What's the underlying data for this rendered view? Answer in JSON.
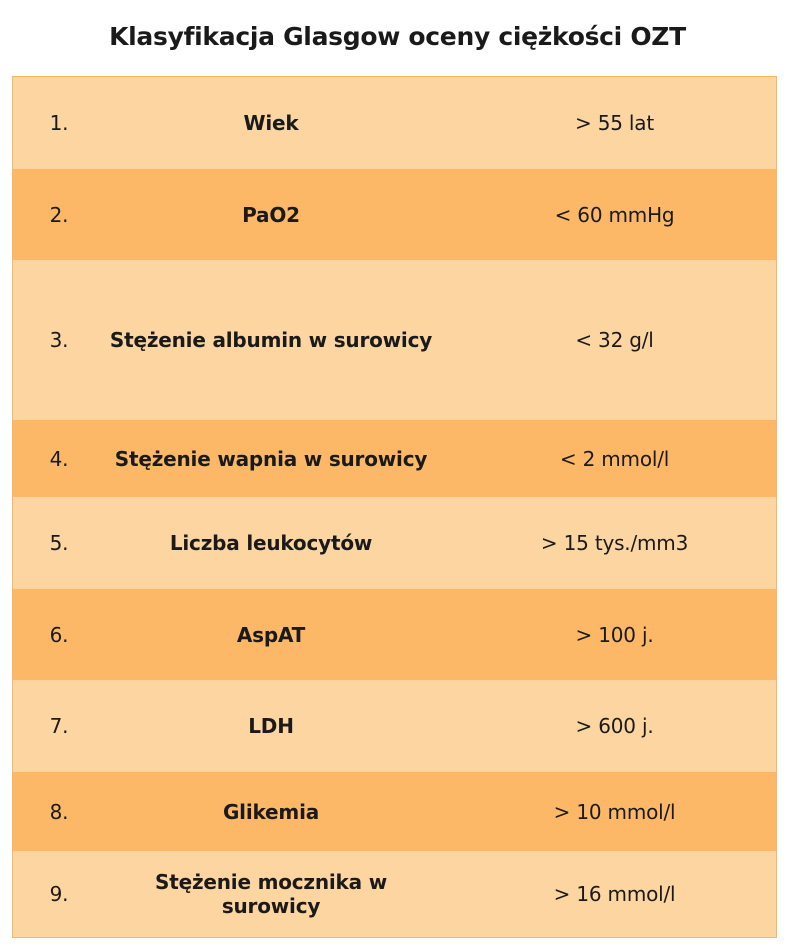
{
  "title": "Klasyfikacja Glasgow oceny ciężkości OZT",
  "colors": {
    "row_light": "#fdd5a1",
    "row_dark": "#fdb867",
    "border": "#f5b961"
  },
  "rows": [
    {
      "num": "1.",
      "name": "Wiek",
      "value": "> 55 lat"
    },
    {
      "num": "2.",
      "name": "PaO2",
      "value": "< 60 mmHg"
    },
    {
      "num": "3.",
      "name": "Stężenie albumin w surowicy",
      "value": "< 32 g/l"
    },
    {
      "num": "4.",
      "name": "Stężenie wapnia w surowicy",
      "value": "< 2 mmol/l"
    },
    {
      "num": "5.",
      "name": "Liczba leukocytów",
      "value": "> 15 tys./mm3"
    },
    {
      "num": "6.",
      "name": "AspAT",
      "value": "> 100 j."
    },
    {
      "num": "7.",
      "name": "LDH",
      "value": "> 600 j."
    },
    {
      "num": "8.",
      "name": "Glikemia",
      "value": "> 10 mmol/l"
    },
    {
      "num": "9.",
      "name": "Stężenie mocznika w surowicy",
      "value": "> 16 mmol/l"
    }
  ]
}
